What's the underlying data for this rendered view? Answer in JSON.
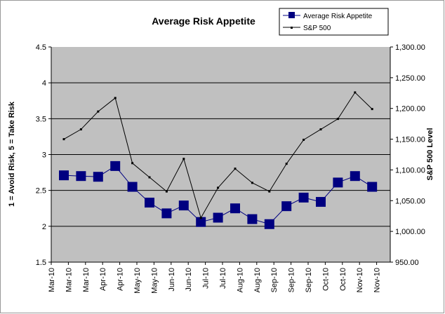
{
  "chart_data": {
    "type": "line",
    "title": "Average Risk Appetite",
    "ylabel": "1 = Avoid Risk, 5 = Take Risk",
    "y2label": "S&P 500 Level",
    "ylim": [
      1.5,
      4.5
    ],
    "y2lim": [
      950,
      1300
    ],
    "yticks": [
      "1.5",
      "2",
      "2.5",
      "3",
      "3.5",
      "4",
      "4.5"
    ],
    "y2ticks": [
      "950.00",
      "1,000.00",
      "1,050.00",
      "1,100.00",
      "1,150.00",
      "1,200.00",
      "1,250.00",
      "1,300.00"
    ],
    "xtick_labels": [
      "Mar-10",
      "Mar-10",
      "Mar-10",
      "Apr-10",
      "Apr-10",
      "May-10",
      "May-10",
      "Jun-10",
      "Jun-10",
      "Jul-10",
      "Jul-10",
      "Aug-10",
      "Aug-10",
      "Sep-10",
      "Sep-10",
      "Sep-10",
      "Oct-10",
      "Oct-10",
      "Nov-10",
      "Nov-10"
    ],
    "grid": true,
    "legend": "top-right",
    "colors": {
      "plot_bg": "#c0c0c0",
      "risk": "#000080",
      "sp500": "#000000"
    },
    "series": [
      {
        "name": "Average Risk Appetite",
        "axis": "left",
        "marker": "square",
        "values": [
          2.71,
          2.7,
          2.69,
          2.84,
          2.55,
          2.33,
          2.18,
          2.29,
          2.06,
          2.12,
          2.25,
          2.1,
          2.03,
          2.28,
          2.4,
          2.34,
          2.61,
          2.7,
          2.55
        ]
      },
      {
        "name": "S&P 500",
        "axis": "right",
        "marker": "dot",
        "values": [
          1150,
          1166,
          1195,
          1217,
          1111,
          1088,
          1065,
          1118,
          1022,
          1071,
          1102,
          1079,
          1065,
          1110,
          1149,
          1166,
          1183,
          1226,
          1199
        ]
      }
    ]
  }
}
